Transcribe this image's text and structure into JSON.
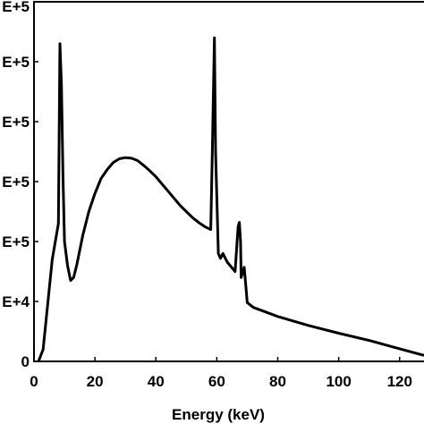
{
  "chart_data": {
    "type": "line",
    "title": "",
    "xlabel": "Energy (keV)",
    "ylabel": "",
    "xlim": [
      0,
      128
    ],
    "ylim": [
      0,
      600000
    ],
    "x_ticks": [
      0,
      20,
      40,
      60,
      80,
      100,
      120
    ],
    "x_tick_labels": [
      "0",
      "20",
      "40",
      "60",
      "80",
      "100",
      "120"
    ],
    "y_ticks": [
      0,
      100000,
      200000,
      300000,
      400000,
      500000,
      600000
    ],
    "y_tick_labels": [
      "0",
      "E+4",
      "E+5",
      "E+5",
      "E+5",
      "E+5",
      "E+5"
    ],
    "grid": false,
    "legend": "none",
    "line_color": "#000000",
    "series": [
      {
        "x": [
          1.5,
          3,
          4,
          6,
          8,
          8.5,
          9,
          9.5,
          10,
          11,
          12,
          13,
          14,
          16,
          18,
          20,
          22,
          24,
          26,
          28,
          30,
          32,
          34,
          36,
          38,
          40,
          42,
          44,
          46,
          48,
          50,
          52,
          54,
          56,
          58,
          58.5,
          59.2,
          59.6,
          60.5,
          61.2,
          62,
          63.5,
          66,
          67,
          67.4,
          67.8,
          68,
          69,
          69.5,
          70,
          72,
          80,
          90,
          100,
          110,
          120,
          128
        ],
        "y": [
          0,
          20000,
          70000,
          170000,
          230000,
          530000,
          460000,
          310000,
          200000,
          160000,
          135000,
          140000,
          160000,
          210000,
          250000,
          280000,
          305000,
          320000,
          332000,
          338000,
          340000,
          339000,
          335000,
          327000,
          318000,
          308000,
          296000,
          284000,
          272000,
          260000,
          250000,
          240000,
          232000,
          225000,
          220000,
          345000,
          540000,
          350000,
          180000,
          172000,
          180000,
          165000,
          150000,
          225000,
          232000,
          200000,
          140000,
          157000,
          128000,
          98000,
          90000,
          75000,
          60000,
          47000,
          35000,
          21000,
          10000
        ]
      }
    ]
  }
}
